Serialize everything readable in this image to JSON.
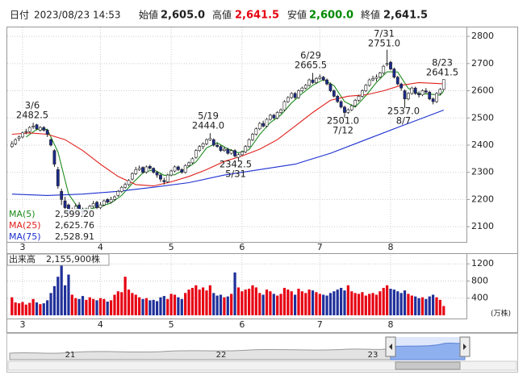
{
  "chart_data": {
    "type": "candlestick",
    "quote": [
      {
        "label": "日付",
        "value": "2023/08/23 14:53"
      },
      {
        "label": "始値",
        "value": "2,605.0"
      },
      {
        "label": "高値",
        "value": "2,641.5",
        "color": "#e60012"
      },
      {
        "label": "安値",
        "value": "2,600.0",
        "color": "#008a00"
      },
      {
        "label": "終値",
        "value": "2,641.5"
      }
    ],
    "categories": [
      null,
      null,
      null,
      "3",
      null,
      null,
      null,
      null,
      null,
      null,
      null,
      null,
      null,
      null,
      null,
      null,
      null,
      null,
      null,
      null,
      null,
      null,
      null,
      null,
      null,
      "4",
      null,
      null,
      null,
      null,
      null,
      null,
      null,
      null,
      null,
      null,
      null,
      null,
      null,
      null,
      null,
      null,
      null,
      null,
      null,
      "5",
      null,
      null,
      null,
      null,
      null,
      null,
      null,
      null,
      null,
      null,
      null,
      null,
      null,
      null,
      null,
      null,
      null,
      null,
      null,
      "6",
      null,
      null,
      null,
      null,
      null,
      null,
      null,
      null,
      null,
      null,
      null,
      null,
      null,
      null,
      null,
      null,
      null,
      null,
      null,
      null,
      null,
      "7",
      null,
      null,
      null,
      null,
      null,
      null,
      null,
      null,
      null,
      null,
      null,
      null,
      null,
      null,
      null,
      null,
      null,
      null,
      null,
      "8",
      null,
      null,
      null,
      null,
      null,
      null,
      null,
      null,
      null,
      null,
      null,
      null,
      null,
      null,
      null
    ],
    "ohlc": [
      [
        2395,
        2415,
        2390,
        2405
      ],
      [
        2405,
        2425,
        2400,
        2420
      ],
      [
        2425,
        2435,
        2415,
        2430
      ],
      [
        2430,
        2450,
        2425,
        2445
      ],
      [
        2450,
        2460,
        2440,
        2450
      ],
      [
        2450,
        2470,
        2445,
        2465
      ],
      [
        2470,
        2482.5,
        2460,
        2470
      ],
      [
        2475,
        2478,
        2455,
        2460
      ],
      [
        2455,
        2470,
        2450,
        2465
      ],
      [
        2465,
        2470,
        2450,
        2455
      ],
      [
        2455,
        2460,
        2430,
        2440
      ],
      [
        2420,
        2425,
        2395,
        2400
      ],
      [
        2380,
        2385,
        2320,
        2330
      ],
      [
        2310,
        2320,
        2240,
        2250
      ],
      [
        2230,
        2240,
        2180,
        2200
      ],
      [
        2195,
        2210,
        2150,
        2170
      ],
      [
        2180,
        2185,
        2130,
        2150
      ],
      [
        2145,
        2170,
        2140,
        2160
      ],
      [
        2165,
        2185,
        2155,
        2175
      ],
      [
        2180,
        2190,
        2160,
        2165
      ],
      [
        2165,
        2170,
        2140,
        2150
      ],
      [
        2150,
        2170,
        2145,
        2160
      ],
      [
        2160,
        2180,
        2155,
        2175
      ],
      [
        2175,
        2195,
        2170,
        2185
      ],
      [
        2190,
        2195,
        2165,
        2170
      ],
      [
        2170,
        2190,
        2165,
        2180
      ],
      [
        2180,
        2200,
        2175,
        2195
      ],
      [
        2200,
        2205,
        2185,
        2190
      ],
      [
        2190,
        2210,
        2185,
        2200
      ],
      [
        2200,
        2215,
        2195,
        2210
      ],
      [
        2215,
        2235,
        2210,
        2230
      ],
      [
        2230,
        2250,
        2225,
        2245
      ],
      [
        2245,
        2262,
        2240,
        2255
      ],
      [
        2255,
        2275,
        2250,
        2270
      ],
      [
        2275,
        2300,
        2270,
        2295
      ],
      [
        2295,
        2320,
        2290,
        2310
      ],
      [
        2310,
        2325,
        2305,
        2315
      ],
      [
        2318,
        2322,
        2295,
        2300
      ],
      [
        2300,
        2325,
        2295,
        2320
      ],
      [
        2322,
        2328,
        2310,
        2315
      ],
      [
        2315,
        2318,
        2295,
        2300
      ],
      [
        2300,
        2305,
        2280,
        2290
      ],
      [
        2290,
        2295,
        2265,
        2275
      ],
      [
        2270,
        2280,
        2255,
        2265
      ],
      [
        2265,
        2295,
        2260,
        2290
      ],
      [
        2290,
        2310,
        2285,
        2305
      ],
      [
        2305,
        2325,
        2300,
        2320
      ],
      [
        2320,
        2325,
        2305,
        2310
      ],
      [
        2310,
        2315,
        2295,
        2300
      ],
      [
        2300,
        2330,
        2295,
        2325
      ],
      [
        2325,
        2340,
        2320,
        2335
      ],
      [
        2335,
        2355,
        2330,
        2350
      ],
      [
        2355,
        2385,
        2350,
        2380
      ],
      [
        2380,
        2400,
        2375,
        2395
      ],
      [
        2395,
        2410,
        2385,
        2405
      ],
      [
        2405,
        2425,
        2400,
        2420
      ],
      [
        2420,
        2444,
        2415,
        2425
      ],
      [
        2420,
        2425,
        2395,
        2400
      ],
      [
        2400,
        2410,
        2390,
        2395
      ],
      [
        2395,
        2400,
        2375,
        2380
      ],
      [
        2380,
        2395,
        2375,
        2385
      ],
      [
        2385,
        2390,
        2365,
        2370
      ],
      [
        2370,
        2385,
        2365,
        2380
      ],
      [
        2380,
        2385,
        2355,
        2360
      ],
      [
        2355,
        2370,
        2342.5,
        2365
      ],
      [
        2365,
        2380,
        2360,
        2375
      ],
      [
        2375,
        2400,
        2370,
        2395
      ],
      [
        2395,
        2425,
        2390,
        2420
      ],
      [
        2420,
        2445,
        2415,
        2440
      ],
      [
        2440,
        2465,
        2435,
        2460
      ],
      [
        2460,
        2485,
        2455,
        2480
      ],
      [
        2480,
        2490,
        2465,
        2470
      ],
      [
        2470,
        2500,
        2465,
        2495
      ],
      [
        2495,
        2515,
        2490,
        2510
      ],
      [
        2510,
        2515,
        2495,
        2500
      ],
      [
        2500,
        2525,
        2495,
        2520
      ],
      [
        2520,
        2535,
        2515,
        2530
      ],
      [
        2530,
        2565,
        2525,
        2560
      ],
      [
        2560,
        2580,
        2555,
        2575
      ],
      [
        2575,
        2595,
        2570,
        2590
      ],
      [
        2590,
        2595,
        2570,
        2575
      ],
      [
        2575,
        2605,
        2570,
        2600
      ],
      [
        2600,
        2615,
        2595,
        2610
      ],
      [
        2610,
        2625,
        2605,
        2620
      ],
      [
        2620,
        2645,
        2615,
        2640
      ],
      [
        2640,
        2665.5,
        2625,
        2630
      ],
      [
        2630,
        2650,
        2625,
        2645
      ],
      [
        2645,
        2660,
        2640,
        2650
      ],
      [
        2650,
        2655,
        2635,
        2640
      ],
      [
        2640,
        2645,
        2620,
        2625
      ],
      [
        2625,
        2630,
        2595,
        2600
      ],
      [
        2600,
        2605,
        2575,
        2580
      ],
      [
        2580,
        2585,
        2555,
        2560
      ],
      [
        2560,
        2565,
        2535,
        2540
      ],
      [
        2540,
        2545,
        2501,
        2520
      ],
      [
        2520,
        2535,
        2515,
        2530
      ],
      [
        2530,
        2550,
        2525,
        2545
      ],
      [
        2545,
        2570,
        2540,
        2565
      ],
      [
        2565,
        2585,
        2560,
        2580
      ],
      [
        2580,
        2605,
        2575,
        2600
      ],
      [
        2600,
        2625,
        2595,
        2620
      ],
      [
        2620,
        2645,
        2615,
        2640
      ],
      [
        2640,
        2655,
        2635,
        2645
      ],
      [
        2645,
        2660,
        2635,
        2650
      ],
      [
        2650,
        2670,
        2645,
        2665
      ],
      [
        2665,
        2695,
        2660,
        2690
      ],
      [
        2700,
        2751,
        2690,
        2700
      ],
      [
        2705,
        2710,
        2675,
        2680
      ],
      [
        2680,
        2685,
        2645,
        2650
      ],
      [
        2650,
        2655,
        2620,
        2625
      ],
      [
        2625,
        2630,
        2600,
        2610
      ],
      [
        2600,
        2605,
        2537,
        2570
      ],
      [
        2570,
        2595,
        2565,
        2590
      ],
      [
        2590,
        2615,
        2585,
        2610
      ],
      [
        2610,
        2615,
        2585,
        2590
      ],
      [
        2590,
        2598,
        2575,
        2585
      ],
      [
        2585,
        2605,
        2580,
        2600
      ],
      [
        2600,
        2610,
        2590,
        2595
      ],
      [
        2595,
        2600,
        2565,
        2570
      ],
      [
        2570,
        2575,
        2550,
        2560
      ],
      [
        2560,
        2595,
        2555,
        2590
      ],
      [
        2590,
        2610,
        2585,
        2605
      ],
      [
        2605,
        2641.5,
        2600,
        2641.5
      ]
    ],
    "up_color": "#ffffff",
    "down_color": "#1b2a8c",
    "ylim": [
      2044,
      2836
    ],
    "yticks": [
      2100,
      2200,
      2300,
      2400,
      2500,
      2600,
      2700,
      2800
    ],
    "grid": true,
    "series": [
      {
        "name": "MA(5)",
        "color": "#1a8a1a",
        "legend_value": "2,599.20",
        "x": [
          4,
          7,
          10,
          13,
          16,
          19,
          22,
          25,
          28,
          31,
          34,
          37,
          40,
          43,
          46,
          49,
          52,
          55,
          58,
          61,
          64,
          67,
          70,
          73,
          76,
          79,
          82,
          85,
          88,
          91,
          94,
          97,
          100,
          103,
          106,
          109,
          112,
          115,
          118,
          121,
          122
        ],
        "values": [
          2430,
          2458,
          2458,
          2375,
          2220,
          2164,
          2165,
          2174,
          2187,
          2215,
          2259,
          2298,
          2310,
          2289,
          2291,
          2312,
          2338,
          2390,
          2409,
          2386,
          2372,
          2383,
          2439,
          2483,
          2511,
          2555,
          2590,
          2620,
          2641,
          2619,
          2560,
          2540,
          2582,
          2631,
          2670,
          2669,
          2609,
          2589,
          2588,
          2584,
          2599.2
        ]
      },
      {
        "name": "MA(25)",
        "color": "#e0201c",
        "legend_value": "2,625.76",
        "x": [
          0,
          5,
          10,
          15,
          20,
          25,
          30,
          35,
          40,
          45,
          50,
          55,
          60,
          65,
          70,
          75,
          80,
          85,
          90,
          95,
          100,
          105,
          110,
          115,
          122
        ],
        "values": [
          2440,
          2445,
          2440,
          2420,
          2380,
          2330,
          2285,
          2255,
          2250,
          2265,
          2285,
          2310,
          2340,
          2360,
          2385,
          2420,
          2470,
          2520,
          2565,
          2580,
          2585,
          2600,
          2620,
          2630,
          2625.76
        ]
      },
      {
        "name": "MA(75)",
        "color": "#1c2fd0",
        "legend_value": "2,528.91",
        "x": [
          0,
          10,
          20,
          30,
          40,
          50,
          60,
          70,
          80,
          90,
          100,
          110,
          122
        ],
        "values": [
          2220,
          2215,
          2220,
          2230,
          2245,
          2262,
          2290,
          2310,
          2330,
          2370,
          2420,
          2470,
          2528.91
        ]
      }
    ],
    "annotations": [
      [
        "3/6",
        "2482.5"
      ],
      [
        "5/19",
        "2444.0"
      ],
      [
        "2342.5",
        "5/31"
      ],
      [
        "6/29",
        "2665.5"
      ],
      [
        "7/31",
        "2751.0"
      ],
      [
        "8/23",
        "2641.5"
      ],
      [
        "2501.0",
        "7/12"
      ],
      [
        "2537.0",
        "8/7"
      ]
    ],
    "volume": {
      "title": "出来高",
      "value_label": "2,155,900株",
      "unit": "(万株)",
      "up_color": "#e60012",
      "down_color": "#1f2f9a",
      "ylim": [
        0,
        1430
      ],
      "yticks": [
        400,
        800,
        1200
      ],
      "values": [
        420,
        300,
        280,
        310,
        250,
        290,
        380,
        300,
        260,
        280,
        350,
        520,
        680,
        900,
        1250,
        700,
        950,
        480,
        400,
        380,
        450,
        360,
        420,
        380,
        350,
        400,
        380,
        320,
        350,
        480,
        560,
        540,
        900,
        600,
        520,
        480,
        420,
        380,
        400,
        350,
        360,
        330,
        420,
        450,
        380,
        500,
        480,
        420,
        380,
        520,
        600,
        640,
        700,
        600,
        650,
        580,
        700,
        520,
        460,
        480,
        420,
        440,
        500,
        1000,
        650,
        560,
        600,
        620,
        700,
        650,
        520,
        480,
        600,
        560,
        500,
        460,
        500,
        640,
        600,
        560,
        480,
        620,
        560,
        520,
        600,
        580,
        540,
        500,
        480,
        460,
        520,
        560,
        600,
        640,
        580,
        700,
        560,
        520,
        500,
        540,
        460,
        500,
        520,
        480,
        560,
        640,
        700,
        620,
        600,
        560,
        520,
        580,
        500,
        460,
        440,
        400,
        420,
        380,
        440,
        480,
        420,
        360,
        215.59
      ]
    },
    "navigator_labels": [
      "21",
      "22",
      "23"
    ]
  }
}
